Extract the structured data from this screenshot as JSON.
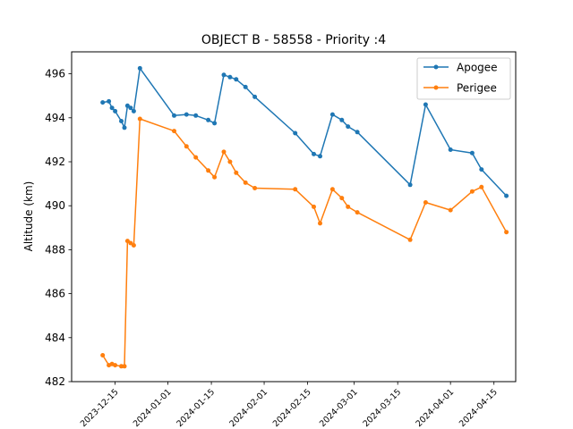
{
  "chart_data": {
    "type": "line",
    "title": "OBJECT B - 58558 - Priority :4",
    "xlabel": "",
    "ylabel": "Altitude (km)",
    "xlim": [
      "2023-12-01",
      "2024-04-22"
    ],
    "ylim": [
      482,
      497
    ],
    "grid": false,
    "legend_position": "top-right",
    "y_ticks": [
      482,
      484,
      486,
      488,
      490,
      492,
      494,
      496
    ],
    "y_tick_labels": [
      "482",
      "484",
      "486",
      "488",
      "490",
      "492",
      "494",
      "496"
    ],
    "x_ticks": [
      "2023-12-15",
      "2024-01-01",
      "2024-01-15",
      "2024-02-01",
      "2024-02-15",
      "2024-03-01",
      "2024-03-15",
      "2024-04-01",
      "2024-04-15"
    ],
    "x_tick_labels": [
      "2023-12-15",
      "2024-01-01",
      "2024-01-15",
      "2024-02-01",
      "2024-02-15",
      "2024-03-01",
      "2024-03-15",
      "2024-04-01",
      "2024-04-15"
    ],
    "series": [
      {
        "name": "Apogee",
        "color": "#1f77b4",
        "points": [
          [
            "2023-12-11",
            494.7
          ],
          [
            "2023-12-13",
            494.75
          ],
          [
            "2023-12-14",
            494.45
          ],
          [
            "2023-12-15",
            494.3
          ],
          [
            "2023-12-17",
            493.85
          ],
          [
            "2023-12-18",
            493.55
          ],
          [
            "2023-12-19",
            494.55
          ],
          [
            "2023-12-20",
            494.45
          ],
          [
            "2023-12-21",
            494.3
          ],
          [
            "2023-12-23",
            496.25
          ],
          [
            "2024-01-03",
            494.1
          ],
          [
            "2024-01-07",
            494.15
          ],
          [
            "2024-01-10",
            494.1
          ],
          [
            "2024-01-14",
            493.9
          ],
          [
            "2024-01-16",
            493.75
          ],
          [
            "2024-01-19",
            495.95
          ],
          [
            "2024-01-21",
            495.85
          ],
          [
            "2024-01-23",
            495.75
          ],
          [
            "2024-01-26",
            495.4
          ],
          [
            "2024-01-29",
            494.95
          ],
          [
            "2024-02-11",
            493.3
          ],
          [
            "2024-02-17",
            492.35
          ],
          [
            "2024-02-19",
            492.25
          ],
          [
            "2024-02-23",
            494.15
          ],
          [
            "2024-02-26",
            493.9
          ],
          [
            "2024-02-28",
            493.6
          ],
          [
            "2024-03-02",
            493.35
          ],
          [
            "2024-03-19",
            490.95
          ],
          [
            "2024-03-24",
            494.6
          ],
          [
            "2024-04-01",
            492.55
          ],
          [
            "2024-04-08",
            492.4
          ],
          [
            "2024-04-11",
            491.65
          ],
          [
            "2024-04-19",
            490.45
          ]
        ]
      },
      {
        "name": "Perigee",
        "color": "#ff7f0e",
        "points": [
          [
            "2023-12-11",
            483.2
          ],
          [
            "2023-12-13",
            482.75
          ],
          [
            "2023-12-14",
            482.8
          ],
          [
            "2023-12-15",
            482.75
          ],
          [
            "2023-12-17",
            482.7
          ],
          [
            "2023-12-18",
            482.7
          ],
          [
            "2023-12-19",
            488.4
          ],
          [
            "2023-12-20",
            488.3
          ],
          [
            "2023-12-21",
            488.2
          ],
          [
            "2023-12-23",
            493.95
          ],
          [
            "2024-01-03",
            493.4
          ],
          [
            "2024-01-07",
            492.7
          ],
          [
            "2024-01-10",
            492.2
          ],
          [
            "2024-01-14",
            491.6
          ],
          [
            "2024-01-16",
            491.3
          ],
          [
            "2024-01-19",
            492.45
          ],
          [
            "2024-01-21",
            492.0
          ],
          [
            "2024-01-23",
            491.5
          ],
          [
            "2024-01-26",
            491.05
          ],
          [
            "2024-01-29",
            490.8
          ],
          [
            "2024-02-11",
            490.75
          ],
          [
            "2024-02-17",
            489.95
          ],
          [
            "2024-02-19",
            489.2
          ],
          [
            "2024-02-23",
            490.75
          ],
          [
            "2024-02-26",
            490.35
          ],
          [
            "2024-02-28",
            489.95
          ],
          [
            "2024-03-02",
            489.7
          ],
          [
            "2024-03-19",
            488.45
          ],
          [
            "2024-03-24",
            490.15
          ],
          [
            "2024-04-01",
            489.8
          ],
          [
            "2024-04-08",
            490.65
          ],
          [
            "2024-04-11",
            490.85
          ],
          [
            "2024-04-19",
            488.8
          ]
        ]
      }
    ]
  }
}
